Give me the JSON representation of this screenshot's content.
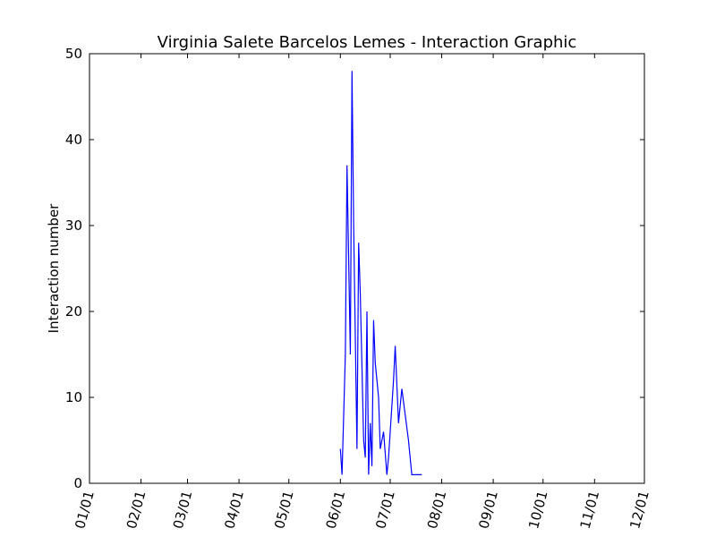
{
  "chart_data": {
    "type": "line",
    "title": "Virginia Salete Barcelos Lemes - Interaction Graphic",
    "xlabel": "",
    "ylabel": "Interaction number",
    "xlim": [
      "01/01",
      "12/01"
    ],
    "ylim": [
      0,
      50
    ],
    "grid": false,
    "x_ticks": [
      "01/01",
      "02/01",
      "03/01",
      "04/01",
      "05/01",
      "06/01",
      "07/01",
      "08/01",
      "09/01",
      "10/01",
      "11/01",
      "12/01"
    ],
    "y_ticks": [
      0,
      10,
      20,
      30,
      40,
      50
    ],
    "series": [
      {
        "color": "#0000ff",
        "x": [
          "06/01",
          "06/02",
          "06/04",
          "06/05",
          "06/07",
          "06/08",
          "06/09",
          "06/11",
          "06/12",
          "06/13",
          "06/15",
          "06/16",
          "06/17",
          "06/18",
          "06/19",
          "06/20",
          "06/21",
          "06/22",
          "06/23",
          "06/24",
          "06/25",
          "06/27",
          "06/29",
          "06/30",
          "07/01",
          "07/02",
          "07/03",
          "07/04",
          "07/06",
          "07/08",
          "07/10",
          "07/12",
          "07/13",
          "07/14",
          "07/17",
          "07/20"
        ],
        "y": [
          4,
          1,
          15,
          37,
          15,
          48,
          30,
          4,
          28,
          22,
          5,
          3,
          20,
          1,
          7,
          2,
          19,
          14,
          12,
          10,
          4,
          6,
          1,
          3,
          6,
          9,
          12,
          16,
          7,
          11,
          8,
          5,
          3,
          1,
          1,
          1
        ]
      }
    ]
  }
}
